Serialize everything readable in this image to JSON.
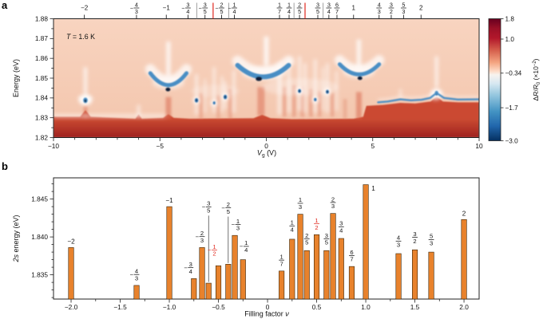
{
  "figure": {
    "panel_a_letter": "a",
    "panel_b_letter": "b"
  },
  "chart_data": [
    {
      "id": "panel_a",
      "type": "heatmap",
      "description": "Reflectance contrast derivative map: exciton 2s energy vs gate voltage showing integer and fractional quantum Hall states",
      "annotation_parts": [
        {
          "t": "T",
          "i": 1
        },
        {
          "t": " = 1.6 K"
        }
      ],
      "xlabel_parts": [
        {
          "t": "V",
          "i": 1
        },
        {
          "t": "g",
          "dy": 2,
          "fs": 6.5
        },
        {
          "t": " (V)",
          "dy": -2
        }
      ],
      "ylabel_parts": [
        {
          "t": "Energy (eV)"
        }
      ],
      "xlim": [
        -10,
        10
      ],
      "ylim": [
        1.82,
        1.88
      ],
      "xticks": [
        -10,
        -5,
        0,
        5,
        10
      ],
      "xtick_labels": [
        "−10",
        "−5",
        "0",
        "5",
        "10"
      ],
      "xminor_step": 1,
      "yticks": [
        1.82,
        1.83,
        1.84,
        1.85,
        1.86,
        1.87,
        1.88
      ],
      "ytick_labels": [
        "1.82",
        "1.83",
        "1.84",
        "1.85",
        "1.86",
        "1.87",
        "1.88"
      ],
      "yminor_step": 0.005,
      "top_axis": {
        "labels": [
          {
            "f": "-2",
            "vg": -8.55
          },
          {
            "f": "-4/3",
            "vg": -6.1
          },
          {
            "f": "-1",
            "vg": -4.7
          },
          {
            "f": "-3/4",
            "vg": -3.68
          },
          {
            "f": "-3/5",
            "vg": -2.88
          },
          {
            "f": "-2/5",
            "vg": -2.1
          },
          {
            "f": "-1/4",
            "vg": -1.5
          },
          {
            "f": "1/7",
            "vg": 0.62
          },
          {
            "f": "1/4",
            "vg": 1.07
          },
          {
            "f": "2/5",
            "vg": 1.56
          },
          {
            "f": "3/5",
            "vg": 2.42
          },
          {
            "f": "3/4",
            "vg": 2.94
          },
          {
            "f": "6/7",
            "vg": 3.32
          },
          {
            "f": "1",
            "vg": 4.1
          },
          {
            "f": "4/3",
            "vg": 5.3
          },
          {
            "f": "3/2",
            "vg": 5.87
          },
          {
            "f": "5/3",
            "vg": 6.45
          },
          {
            "f": "2",
            "vg": 7.27
          }
        ],
        "red_marks_vg": [
          -2.5,
          1.82
        ],
        "separators_vg": [
          -3.27,
          -1.76,
          1.3,
          2.67
        ],
        "red_color": "#e0281e",
        "separator_color": "#8a8a8a"
      },
      "colorbar": {
        "label_parts": [
          {
            "t": "Δ"
          },
          {
            "t": "R",
            "i": 1
          },
          {
            "t": "/"
          },
          {
            "t": "R",
            "i": 1
          },
          {
            "t": "0",
            "dy": 2,
            "fs": 6
          },
          {
            "t": " (×10",
            "dy": -2
          },
          {
            "t": "−2",
            "dy": -3,
            "fs": 6
          },
          {
            "t": ")",
            "dy": 3
          }
        ],
        "tick_values": [
          1.8,
          1.0,
          -0.34,
          -1.7,
          -3.0
        ],
        "tick_labels": [
          "1.8",
          "1.0",
          "−0.34",
          "−1.7",
          "−3.0"
        ],
        "range": [
          1.8,
          -3.0
        ],
        "stops": [
          [
            0,
            "#67001f"
          ],
          [
            0.08,
            "#9b1027"
          ],
          [
            0.16,
            "#b2182b"
          ],
          [
            0.26,
            "#d6604d"
          ],
          [
            0.36,
            "#f4a582"
          ],
          [
            0.43,
            "#fddbc7"
          ],
          [
            0.46,
            "#f7f3ef"
          ],
          [
            0.53,
            "#d8e8f1"
          ],
          [
            0.63,
            "#92c5de"
          ],
          [
            0.76,
            "#4393c3"
          ],
          [
            0.88,
            "#2166ac"
          ],
          [
            1,
            "#053061"
          ]
        ]
      },
      "features": {
        "bg_top": "#f8d4c0",
        "bg_bottom": "#f3c5ac",
        "colors": {
          "blue": "#4a8ec4",
          "blue_mid": "#2f74b3",
          "dark": "#081c38",
          "white": "#ffffff",
          "red_streak": "#d96a50",
          "band_top": "#cb4a31",
          "band_bottom": "#9e2220"
        },
        "band_top_pts": [
          [
            -10,
            1.8305
          ],
          [
            -8.75,
            1.8305
          ],
          [
            -8.5,
            1.8338
          ],
          [
            -8.25,
            1.8305
          ],
          [
            -6.15,
            1.8295
          ],
          [
            -6.0,
            1.8318
          ],
          [
            -5.85,
            1.8295
          ],
          [
            -4.85,
            1.83
          ],
          [
            -4.6,
            1.8318
          ],
          [
            -4.35,
            1.83
          ],
          [
            -3.6,
            1.8295
          ],
          [
            -0.6,
            1.8298
          ],
          [
            -0.2,
            1.8315
          ],
          [
            0.2,
            1.8298
          ],
          [
            1.2,
            1.8293
          ],
          [
            4.1,
            1.8295
          ],
          [
            4.55,
            1.8305
          ],
          [
            4.7,
            1.836
          ],
          [
            5.5,
            1.8365
          ],
          [
            6.3,
            1.8375
          ],
          [
            7.0,
            1.8372
          ],
          [
            7.72,
            1.8382
          ],
          [
            8.0,
            1.8408
          ],
          [
            8.3,
            1.8382
          ],
          [
            9.0,
            1.8378
          ],
          [
            10,
            1.8378
          ]
        ],
        "white_streaks": [
          [
            -8.5,
            1.842,
            1.8555,
            0.7,
            2.2
          ],
          [
            -6.0,
            1.8302,
            1.8365,
            0.55,
            2.0
          ],
          [
            -4.6,
            1.8515,
            1.8685,
            0.8,
            2.6
          ],
          [
            -3.28,
            1.8315,
            1.852,
            0.55,
            2.0
          ],
          [
            -2.88,
            1.8325,
            1.8495,
            0.4,
            1.8
          ],
          [
            -2.45,
            1.8325,
            1.8555,
            0.5,
            2.0
          ],
          [
            -2.08,
            1.8325,
            1.851,
            0.45,
            1.8
          ],
          [
            -1.93,
            1.8345,
            1.8485,
            0.45,
            1.8
          ],
          [
            -1.52,
            1.8325,
            1.854,
            0.5,
            2.0
          ],
          [
            0.0,
            1.8565,
            1.871,
            0.8,
            3.0
          ],
          [
            0.62,
            1.8315,
            1.858,
            0.6,
            2.2
          ],
          [
            1.07,
            1.8325,
            1.8595,
            0.55,
            2.0
          ],
          [
            1.56,
            1.8335,
            1.861,
            0.55,
            2.0
          ],
          [
            1.82,
            1.8325,
            1.8575,
            0.5,
            2.0
          ],
          [
            2.3,
            1.8325,
            1.8595,
            0.55,
            2.0
          ],
          [
            2.66,
            1.8335,
            1.8555,
            0.4,
            1.8
          ],
          [
            2.87,
            1.8325,
            1.8575,
            0.5,
            2.0
          ],
          [
            3.3,
            1.8335,
            1.8535,
            0.45,
            1.8
          ],
          [
            4.35,
            1.8565,
            1.8695,
            0.8,
            2.6
          ],
          [
            6.3,
            1.8398,
            1.8445,
            0.45,
            1.8
          ],
          [
            8.0,
            1.8455,
            1.861,
            0.65,
            2.2
          ]
        ],
        "red_streaks": [
          [
            -8.5,
            1.8295,
            1.836,
            0.45,
            2.5
          ],
          [
            -4.6,
            1.8295,
            1.8405,
            0.55,
            3.5
          ],
          [
            -3.07,
            1.8295,
            1.8425,
            0.3,
            2.5
          ],
          [
            -2.25,
            1.8295,
            1.8415,
            0.28,
            2.5
          ],
          [
            -1.7,
            1.8295,
            1.8445,
            0.32,
            2.5
          ],
          [
            -0.25,
            1.831,
            1.8455,
            0.5,
            4.5
          ],
          [
            0.85,
            1.8305,
            1.8455,
            0.35,
            2.5
          ],
          [
            1.3,
            1.8305,
            1.8465,
            0.35,
            2.5
          ],
          [
            1.7,
            1.8305,
            1.8455,
            0.35,
            2.5
          ],
          [
            2.1,
            1.8305,
            1.8445,
            0.35,
            2.5
          ],
          [
            2.5,
            1.8305,
            1.8435,
            0.32,
            2.5
          ],
          [
            3.1,
            1.8305,
            1.8425,
            0.32,
            2.5
          ],
          [
            3.7,
            1.8295,
            1.8395,
            0.28,
            2.5
          ],
          [
            4.35,
            1.8295,
            1.843,
            0.55,
            3.5
          ]
        ],
        "clouds": [
          [
            -4.6,
            1.8475,
            20,
            8,
            0.45
          ],
          [
            -0.1,
            1.8525,
            28,
            9,
            0.5
          ],
          [
            4.35,
            1.853,
            20,
            8,
            0.45
          ],
          [
            1.6,
            1.8455,
            48,
            11,
            0.28
          ],
          [
            -2.4,
            1.8435,
            30,
            8,
            0.22
          ],
          [
            -8.5,
            1.8395,
            9,
            6,
            0.75
          ],
          [
            7.95,
            1.841,
            8,
            5.5,
            0.55
          ]
        ],
        "hbands": [
          [
            -10,
            -4.75,
            1.8298,
            1.832,
            0.45
          ]
        ],
        "dips": [
          {
            "x0": -5.45,
            "e0": 1.8525,
            "xc": -4.6,
            "ec": 1.8405,
            "x1": -3.75,
            "e1": 1.8525,
            "w": 5,
            "core": [
              -4.62,
              1.8443,
              3,
              2.4
            ]
          },
          {
            "x0": -1.35,
            "e0": 1.8565,
            "xc": -0.15,
            "ec": 1.8448,
            "x1": 1.05,
            "e1": 1.8565,
            "w": 6,
            "core": [
              -0.35,
              1.8497,
              4,
              2.8
            ]
          },
          {
            "x0": 3.45,
            "e0": 1.857,
            "xc": 4.35,
            "ec": 1.8468,
            "x1": 5.3,
            "e1": 1.857,
            "w": 5,
            "core": [
              4.4,
              1.85,
              3,
              2.3
            ]
          }
        ],
        "spots": [
          {
            "v": -8.5,
            "e": 1.8388,
            "rx": 2.8,
            "ry": 3.4
          },
          {
            "v": 8.0,
            "e": 1.8424,
            "rx": 2.3,
            "ry": 3.0
          }
        ],
        "dots": [
          [
            -3.28,
            1.8388,
            1.0
          ],
          [
            -2.45,
            1.8375,
            0.7
          ],
          [
            -1.93,
            1.8405,
            1.0
          ],
          [
            1.56,
            1.8435,
            0.9
          ],
          [
            2.3,
            1.8392,
            0.75
          ],
          [
            2.87,
            1.8431,
            0.9
          ]
        ],
        "blue_line": [
          [
            5.25,
            1.8378
          ],
          [
            5.7,
            1.8382
          ],
          [
            6.3,
            1.8393
          ],
          [
            6.8,
            1.8388
          ],
          [
            7.3,
            1.8391
          ],
          [
            7.7,
            1.84
          ],
          [
            8.0,
            1.8425
          ],
          [
            8.35,
            1.84
          ],
          [
            9.0,
            1.8392
          ],
          [
            10,
            1.8393
          ]
        ]
      }
    },
    {
      "id": "panel_b",
      "type": "bar",
      "xlabel_parts": [
        {
          "t": "Filling factor "
        },
        {
          "t": "ν",
          "i": 1
        }
      ],
      "ylabel_parts": [
        {
          "t": "2s",
          "i": 1
        },
        {
          "t": " energy (eV)"
        }
      ],
      "xlim": [
        -2.179,
        2.154
      ],
      "ylim": [
        1.8318,
        1.8478
      ],
      "xticks": [
        -2.0,
        -1.5,
        -1.0,
        -0.5,
        0,
        0.5,
        1.0,
        1.5,
        2.0
      ],
      "xtick_labels": [
        "−2.0",
        "−1.5",
        "−1.0",
        "−0.5",
        "0",
        "0.5",
        "1.0",
        "1.5",
        "2.0"
      ],
      "xminor_step": 0.25,
      "yticks": [
        1.835,
        1.84,
        1.845
      ],
      "ytick_labels": [
        "1.835",
        "1.840",
        "1.845"
      ],
      "yminor_step": 0.001,
      "bar_color": "#e8822c",
      "bar_edge": "#3a2508",
      "red_label_color": "#e0281e",
      "bars": [
        {
          "nu": "-2",
          "x": -2.0,
          "e": 1.8386
        },
        {
          "nu": "-4/3",
          "x": -1.3333,
          "e": 1.8336
        },
        {
          "nu": "-1",
          "x": -1.0,
          "e": 1.844
        },
        {
          "nu": "-3/4",
          "x": -0.75,
          "e": 1.8345,
          "dx": -4
        },
        {
          "nu": "-2/3",
          "x": -0.6667,
          "e": 1.8386
        },
        {
          "nu": "-3/5",
          "x": -0.6,
          "e": 1.8339,
          "raise": 82,
          "leader": true
        },
        {
          "nu": "-1/2",
          "x": -0.5,
          "e": 1.8362,
          "red": true,
          "raise": 6,
          "dx": -5
        },
        {
          "nu": "-2/5",
          "x": -0.4,
          "e": 1.8364,
          "raise": 57,
          "leader": true
        },
        {
          "nu": "-1/3",
          "x": -0.3333,
          "e": 1.8402,
          "dx": 4
        },
        {
          "nu": "-1/4",
          "x": -0.25,
          "e": 1.837,
          "raise": 3,
          "dx": 4
        },
        {
          "nu": "1/7",
          "x": 0.1429,
          "e": 1.8355
        },
        {
          "nu": "1/4",
          "x": 0.25,
          "e": 1.8397,
          "raise": 3
        },
        {
          "nu": "1/3",
          "x": 0.3333,
          "e": 1.843
        },
        {
          "nu": "2/5",
          "x": 0.4,
          "e": 1.8382,
          "raise": 1
        },
        {
          "nu": "1/2",
          "x": 0.5,
          "e": 1.8403,
          "red": true
        },
        {
          "nu": "3/5",
          "x": 0.6,
          "e": 1.8382,
          "raise": 1
        },
        {
          "nu": "2/3",
          "x": 0.6667,
          "e": 1.8431
        },
        {
          "nu": "3/4",
          "x": 0.75,
          "e": 1.8398,
          "raise": 1
        },
        {
          "nu": "6/7",
          "x": 0.8571,
          "e": 1.8361
        },
        {
          "nu": "1",
          "x": 1.0,
          "e": 1.8469,
          "side": "right"
        },
        {
          "nu": "4/3",
          "x": 1.3333,
          "e": 1.8378,
          "raise": 2
        },
        {
          "nu": "3/2",
          "x": 1.5,
          "e": 1.8383,
          "raise": 2
        },
        {
          "nu": "5/3",
          "x": 1.6667,
          "e": 1.838,
          "raise": 2
        },
        {
          "nu": "2",
          "x": 2.0,
          "e": 1.8423
        }
      ]
    }
  ]
}
